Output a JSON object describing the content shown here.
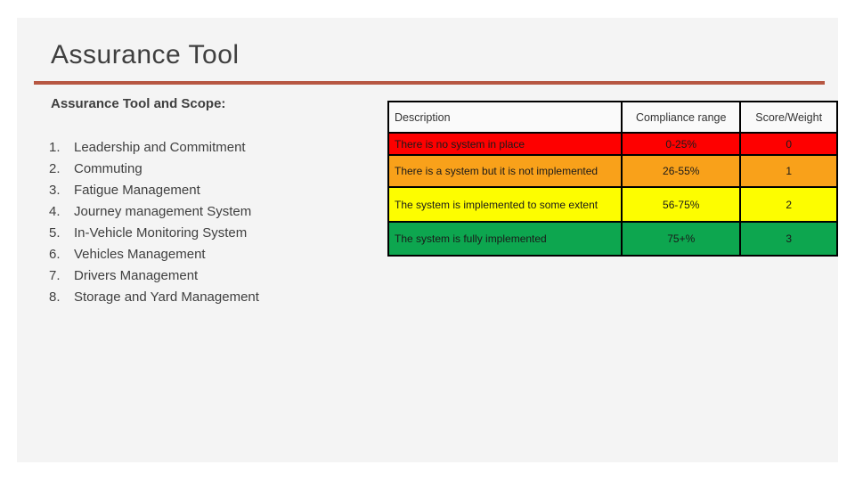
{
  "slide": {
    "title": "Assurance Tool",
    "subtitle": "Assurance Tool and Scope:",
    "accent_color": "#b75742",
    "background_color": "#f4f4f4",
    "scope_items": [
      "Leadership and Commitment",
      "Commuting",
      "Fatigue Management",
      "Journey management System",
      "In-Vehicle Monitoring System",
      "Vehicles Management",
      "Drivers Management",
      "Storage and Yard Management"
    ]
  },
  "table": {
    "headers": [
      "Description",
      "Compliance range",
      "Score/Weight"
    ],
    "rows": [
      {
        "description": "There is no system in place",
        "compliance_range": "0-25%",
        "score": "0",
        "color": "#fe0000"
      },
      {
        "description": "There is a system but it is not implemented",
        "compliance_range": "26-55%",
        "score": "1",
        "color": "#f9a11a"
      },
      {
        "description": "The system is implemented to some extent",
        "compliance_range": "56-75%",
        "score": "2",
        "color": "#fdfd00"
      },
      {
        "description": "The system is fully implemented",
        "compliance_range": "75+%",
        "score": "3",
        "color": "#0da64f"
      }
    ]
  }
}
